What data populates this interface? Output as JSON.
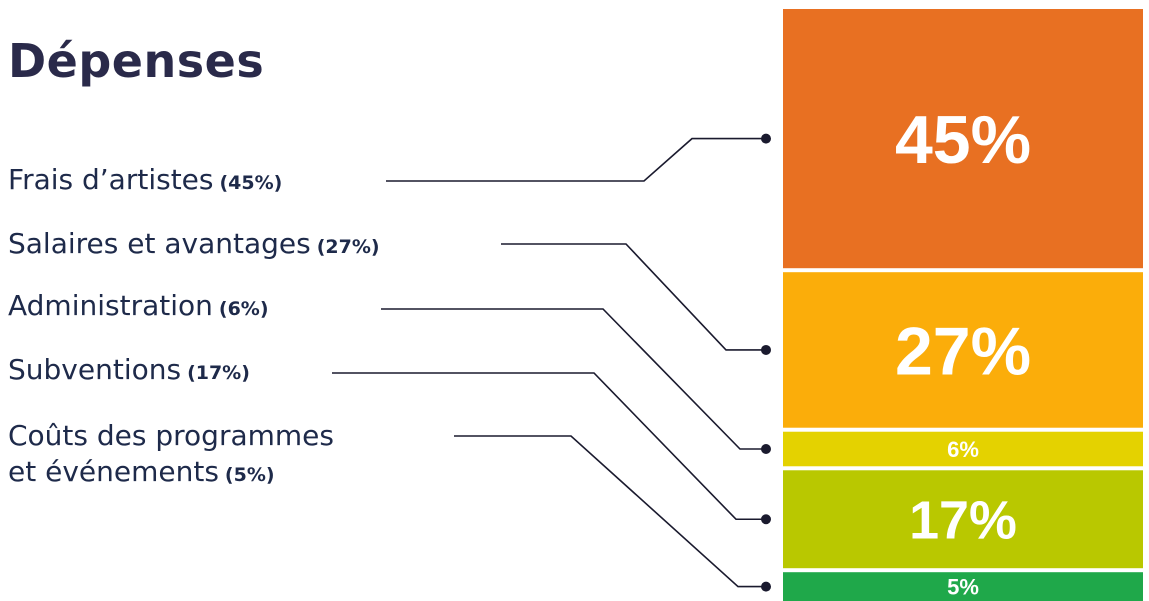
{
  "chart_data": {
    "type": "bar",
    "title": "Dépenses",
    "categories": [
      "Frais d’artistes",
      "Salaires et avantages",
      "Administration",
      "Subventions",
      "Coûts des programmes et événements"
    ],
    "category_lines": [
      [
        "Frais d’artistes"
      ],
      [
        "Salaires et avantages"
      ],
      [
        "Administration"
      ],
      [
        "Subventions"
      ],
      [
        "Coûts des programmes",
        "et événements"
      ]
    ],
    "legend_percent_text": [
      "(45%)",
      "(27%)",
      "(6%)",
      "(17%)",
      "(5%)"
    ],
    "values": [
      45,
      27,
      6,
      17,
      5
    ],
    "data_labels": [
      "45%",
      "27%",
      "6%",
      "17%",
      "5%"
    ],
    "colors": [
      "#e87022",
      "#fbad0a",
      "#e4d200",
      "#b9c800",
      "#1fa84a"
    ],
    "stacked": true,
    "orientation": "vertical"
  }
}
